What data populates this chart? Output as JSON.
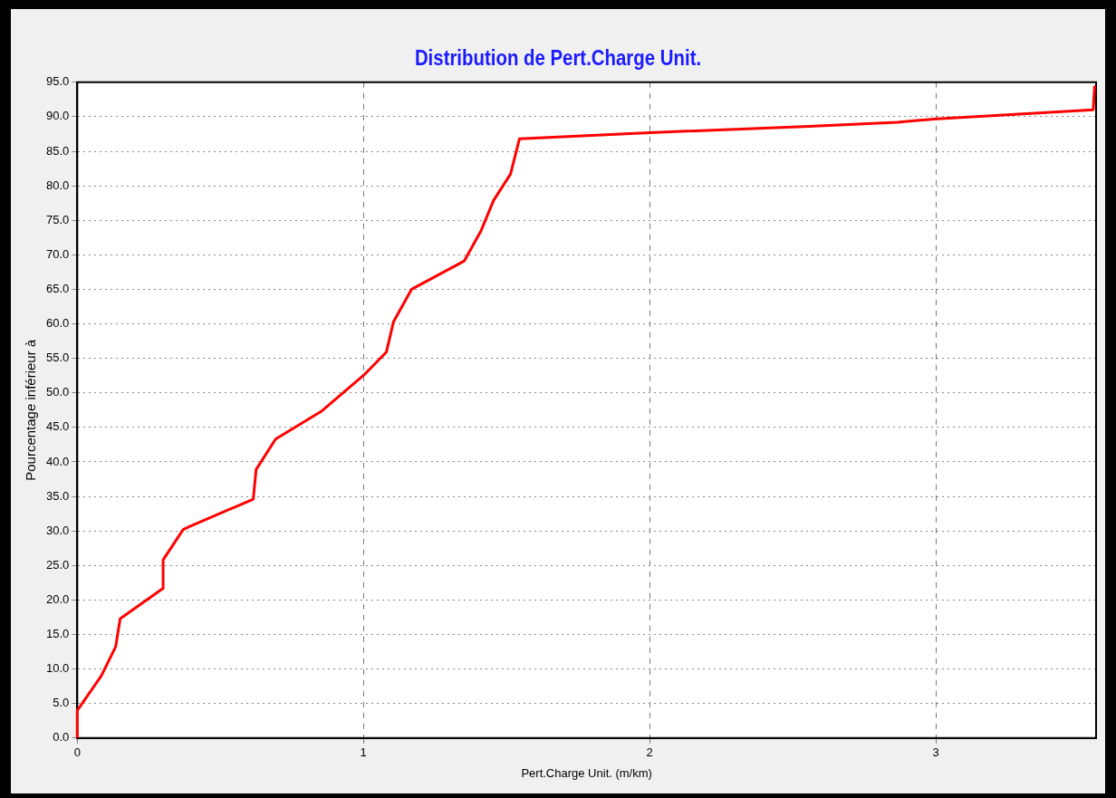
{
  "chart_data": {
    "type": "line",
    "title": "Distribution de Pert.Charge Unit.",
    "xlabel": "Pert.Charge Unit. (m/km)",
    "ylabel": "Pourcentage inférieur à",
    "x": [
      0,
      0,
      0.084,
      0.134,
      0.15,
      0.3,
      0.3,
      0.37,
      0.39,
      0.615,
      0.625,
      0.693,
      0.852,
      1.002,
      1.08,
      1.105,
      1.168,
      1.352,
      1.411,
      1.455,
      1.514,
      1.545,
      2.0,
      2.557,
      2.866,
      3.003,
      3.55,
      3.555
    ],
    "series": [
      {
        "color": "#ff0000",
        "values": [
          0,
          4.0,
          9.0,
          13.2,
          17.3,
          21.7,
          25.8,
          30.2,
          30.6,
          34.6,
          38.9,
          43.3,
          47.3,
          52.6,
          55.9,
          60.3,
          65.0,
          69.1,
          73.5,
          77.9,
          81.7,
          86.8,
          87.7,
          88.6,
          89.2,
          89.7,
          91.0,
          94.5
        ]
      }
    ],
    "xlim": [
      0,
      3.56
    ],
    "xticks": [
      0,
      1,
      2,
      3
    ],
    "ylim": [
      0,
      95
    ],
    "yticks": [
      {
        "value": 0,
        "label": "0.0"
      },
      {
        "value": 5,
        "label": "5.0"
      },
      {
        "value": 10,
        "label": "10.0"
      },
      {
        "value": 15,
        "label": "15.0"
      },
      {
        "value": 20,
        "label": "20.0"
      },
      {
        "value": 25,
        "label": "25.0"
      },
      {
        "value": 30,
        "label": "30.0"
      },
      {
        "value": 35,
        "label": "35.0"
      },
      {
        "value": 40,
        "label": "40.0"
      },
      {
        "value": 45,
        "label": "45.0"
      },
      {
        "value": 50,
        "label": "50.0"
      },
      {
        "value": 55,
        "label": "55.0"
      },
      {
        "value": 60,
        "label": "60.0"
      },
      {
        "value": 65,
        "label": "65.0"
      },
      {
        "value": 70,
        "label": "70.0"
      },
      {
        "value": 75,
        "label": "75.0"
      },
      {
        "value": 80,
        "label": "80.0"
      },
      {
        "value": 85,
        "label": "85.0"
      },
      {
        "value": 90,
        "label": "90.0"
      },
      {
        "value": 95,
        "label": "95.0"
      }
    ],
    "grid": true,
    "legend": false,
    "marker": "none",
    "line_style": "solid"
  }
}
